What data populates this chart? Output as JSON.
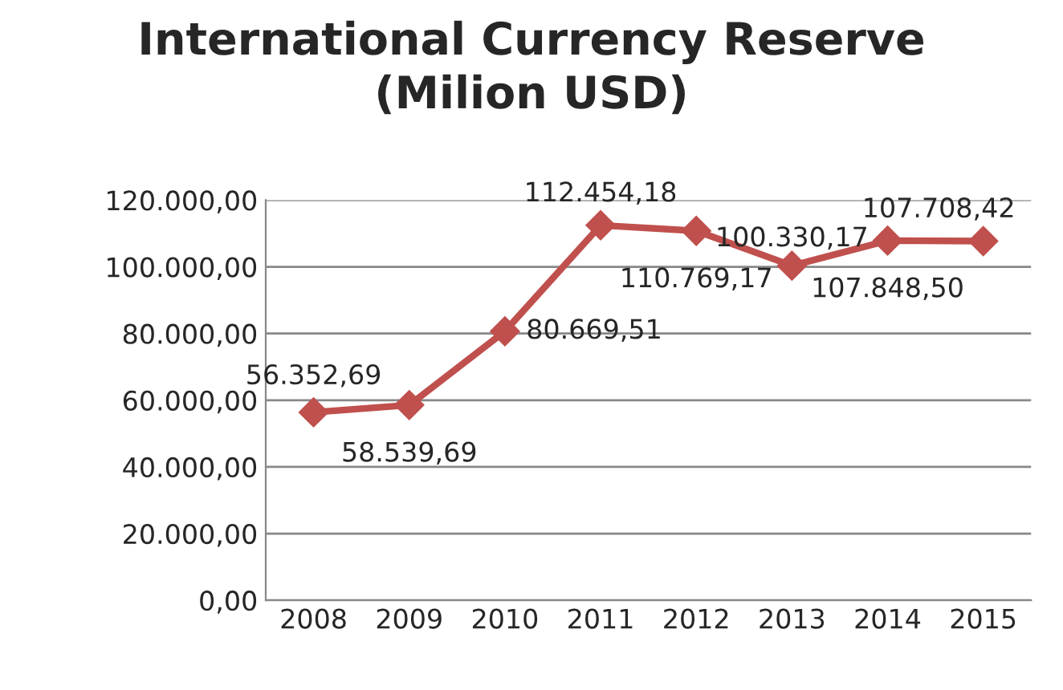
{
  "chart_data": {
    "type": "line",
    "title": "International Currency Reserve\n(Milion USD)",
    "categories": [
      "2008",
      "2009",
      "2010",
      "2011",
      "2012",
      "2013",
      "2014",
      "2015"
    ],
    "series": [
      {
        "color": "#c0504d",
        "values": [
          56352.69,
          58539.69,
          80669.51,
          112454.18,
          110769.17,
          100330.17,
          107848.5,
          107708.42
        ],
        "value_labels": [
          "56.352,69",
          "58.539,69",
          "80.669,51",
          "112.454,18",
          "110.769,17",
          "100.330,17",
          "107.848,50",
          "107.708,42"
        ]
      }
    ],
    "ylim": [
      0,
      120000
    ],
    "yticks": [
      {
        "value": 0,
        "label": "0,00"
      },
      {
        "value": 20000,
        "label": "20.000,00"
      },
      {
        "value": 40000,
        "label": "40.000,00"
      },
      {
        "value": 60000,
        "label": "60.000,00"
      },
      {
        "value": 80000,
        "label": "80.000,00"
      },
      {
        "value": 100000,
        "label": "100.000,00"
      },
      {
        "value": 120000,
        "label": "120.000,00"
      }
    ],
    "grid": "y",
    "marker": "diamond",
    "line_style": "solid",
    "legend": false
  }
}
